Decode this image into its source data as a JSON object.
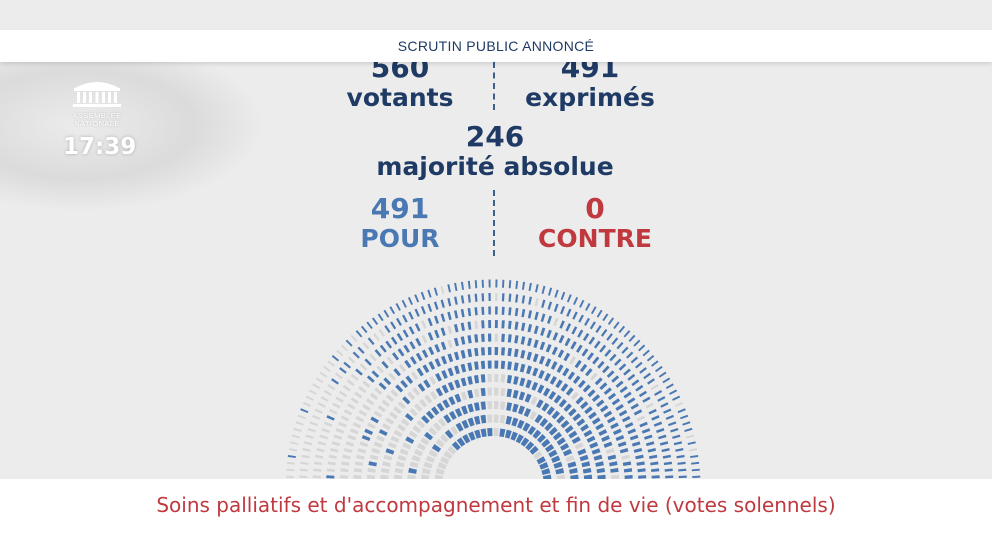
{
  "header": {
    "title": "SCRUTIN PUBLIC ANNONCÉ"
  },
  "logo": {
    "line1": "ASSEMBLÉE",
    "line2": "NATIONALE"
  },
  "clock": "17:39",
  "stats": {
    "votants": {
      "value": "560",
      "label": "votants"
    },
    "exprimes": {
      "value": "491",
      "label": "exprimés"
    },
    "majorite": {
      "value": "246",
      "label": "majorité absolue"
    },
    "pour": {
      "value": "491",
      "label": "POUR"
    },
    "contre": {
      "value": "0",
      "label": "CONTRE"
    }
  },
  "hemicycle": {
    "rows": 12,
    "seats_for": 491,
    "colors": {
      "pour": "#4a78b2",
      "absent": "#d6d6d6"
    }
  },
  "footer": {
    "caption": "Soins palliatifs et d'accompagnement et fin de vie (votes solennels)"
  },
  "colors": {
    "navy": "#1f3a64",
    "blue": "#4a78b2",
    "red": "#c0393f"
  }
}
